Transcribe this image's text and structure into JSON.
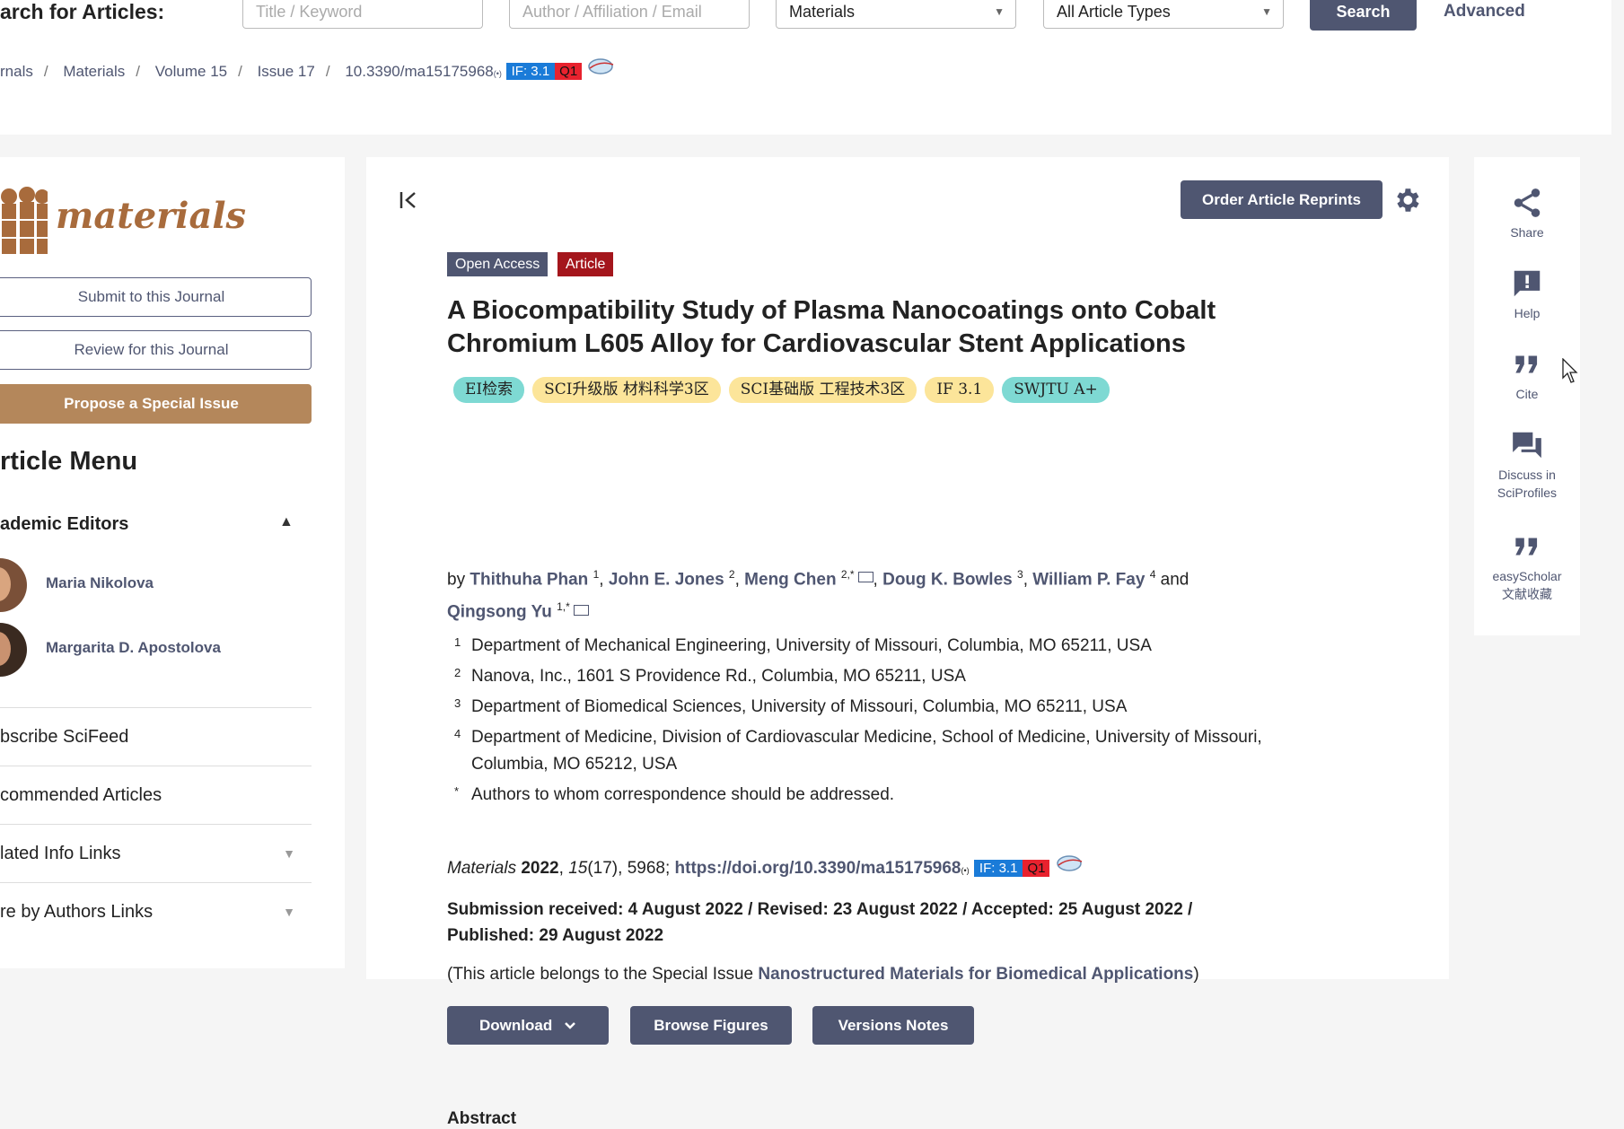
{
  "search": {
    "label": "arch for Articles:",
    "title_placeholder": "Title / Keyword",
    "author_placeholder": "Author / Affiliation / Email",
    "journal_selected": "Materials",
    "type_selected": "All Article Types",
    "search_button": "Search",
    "advanced_link": "Advanced"
  },
  "breadcrumb": {
    "items": [
      "rnals",
      "Materials",
      "Volume 15",
      "Issue 17",
      "10.3390/ma15175968"
    ],
    "if_badge": "IF: 3.1",
    "quartile": "Q1"
  },
  "sidebar": {
    "journal_logo_text": "materials",
    "submit_button": "Submit to this Journal",
    "review_button": "Review for this Journal",
    "propose_button": "Propose a Special Issue",
    "menu_title": "rticle Menu",
    "editors_heading": "ademic Editors",
    "editors": [
      "Maria Nikolova",
      "Margarita D. Apostolova"
    ],
    "rows": [
      "bscribe SciFeed",
      "commended Articles",
      "lated Info Links",
      "re by Authors Links"
    ]
  },
  "article": {
    "reprint_button": "Order Article Reprints",
    "tag_open_access": "Open Access",
    "tag_article": "Article",
    "title": "A Biocompatibility Study of Plasma Nanocoatings onto Cobalt Chromium L605 Alloy for Cardiovascular Stent Applications",
    "pills": [
      "EI检索",
      "SCI升级版 材料科学3区",
      "SCI基础版 工程技术3区",
      "IF 3.1",
      "SWJTU A+"
    ],
    "by": "by",
    "authors": [
      {
        "name": "Thithuha Phan",
        "sup": "1"
      },
      {
        "name": "John E. Jones",
        "sup": "2"
      },
      {
        "name": "Meng Chen",
        "sup": "2,*"
      },
      {
        "name": "Doug K. Bowles",
        "sup": "3"
      },
      {
        "name": "William P. Fay",
        "sup": "4"
      },
      {
        "name": "Qingsong Yu",
        "sup": "1,*"
      }
    ],
    "and": "and",
    "affiliations": [
      {
        "num": "1",
        "text": "Department of Mechanical Engineering, University of Missouri, Columbia, MO 65211, USA"
      },
      {
        "num": "2",
        "text": "Nanova, Inc., 1601 S Providence Rd., Columbia, MO 65211, USA"
      },
      {
        "num": "3",
        "text": "Department of Biomedical Sciences, University of Missouri, Columbia, MO 65211, USA"
      },
      {
        "num": "4",
        "text": "Department of Medicine, Division of Cardiovascular Medicine, School of Medicine, University of Missouri, Columbia, MO 65212, USA"
      },
      {
        "num": "*",
        "text": "Authors to whom correspondence should be addressed."
      }
    ],
    "citation": {
      "journal": "Materials",
      "year": "2022",
      "volume": "15",
      "issue_pages": "(17), 5968;",
      "doi": "https://doi.org/10.3390/ma15175968",
      "if_badge": "IF: 3.1",
      "quartile": "Q1"
    },
    "dates": "Submission received: 4 August 2022 / Revised: 23 August 2022 / Accepted: 25 August 2022 / Published: 29 August 2022",
    "special_prefix": "(This article belongs to the Special Issue ",
    "special_link": "Nanostructured Materials for Biomedical Applications",
    "special_suffix": ")",
    "download_button": "Download",
    "browse_button": "Browse Figures",
    "versions_button": "Versions Notes",
    "abstract_heading": "Abstract"
  },
  "right_rail": {
    "share": "Share",
    "help": "Help",
    "cite": "Cite",
    "discuss_1": "Discuss in",
    "discuss_2": "SciProfiles",
    "easyscholar_1": "easyScholar",
    "easyscholar_2": "文献收藏"
  },
  "colors": {
    "primary": "#4f5671",
    "accent_brown": "#b4875b",
    "article_tag": "#a4161c",
    "if_blue": "#1a7bd8",
    "q_red": "#e8222e",
    "pill_ei": "#7ed9d3",
    "pill_yellow": "#fce59a",
    "pill_swjtu": "#7ed9d3"
  },
  "icons": [
    "share-icon",
    "help-icon",
    "quote-icon",
    "discuss-icon",
    "gear-icon",
    "collapse-icon",
    "mail-icon",
    "chevron-down-icon",
    "chevron-up-icon",
    "globe-icon"
  ]
}
